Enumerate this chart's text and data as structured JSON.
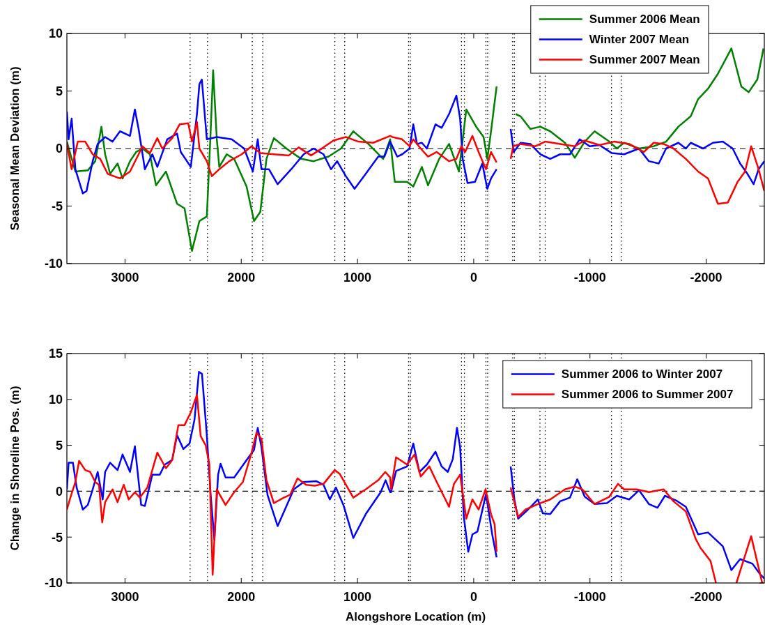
{
  "chart_data": [
    {
      "type": "line",
      "ylabel": "Seasonal Mean Deviation (m)",
      "xlim": [
        3500,
        -2500
      ],
      "xticks": [
        3000,
        2000,
        1000,
        0,
        -1000,
        -2000
      ],
      "ylim": [
        -10,
        10
      ],
      "yticks": [
        -10,
        -5,
        0,
        5,
        10
      ],
      "legend": "top right",
      "grid": false,
      "series": [
        {
          "name": "Summer 2006 Mean",
          "color": "#008000",
          "x": [
            3500,
            3427,
            3320,
            3256,
            3203,
            3171,
            3128,
            3064,
            3021,
            2957,
            2904,
            2851,
            2786,
            2733,
            2648,
            2552,
            2488,
            2424,
            2360,
            2296,
            2263,
            2242,
            2210,
            2189,
            2125,
            2061,
            1954,
            1890,
            1836,
            1783,
            1719,
            1612,
            1484,
            1377,
            1249,
            1142,
            1036,
            907,
            779,
            719,
            679,
            573,
            520,
            446,
            393,
            297,
            212,
            127,
            64,
            -21,
            -85,
            -117,
            -149,
            -197,
            -257,
            -361,
            -403,
            -488,
            -573,
            -658,
            -785,
            -870,
            -955,
            -1040,
            -1167,
            -1231,
            -1294,
            -1422,
            -1549,
            -1655,
            -1761,
            -1867,
            -1931,
            -2016,
            -2101,
            -2217,
            -2302,
            -2366,
            -2440,
            -2493
          ],
          "values": [
            0.6,
            -2,
            -1.9,
            -1.1,
            1.9,
            -0.5,
            -2.2,
            -1.3,
            -2.6,
            -1.1,
            -0.3,
            0,
            -0.5,
            -3.2,
            -2,
            -4.8,
            -5.2,
            -8.9,
            -6.3,
            -5.9,
            1.5,
            6.8,
            0.8,
            -1.6,
            -0.5,
            -0.9,
            -3.3,
            -6.3,
            -5.5,
            -0.9,
            0.9,
            0,
            -0.9,
            -1.1,
            -0.7,
            0,
            1.5,
            0.4,
            -0.9,
            0.8,
            -2.9,
            -2.9,
            -3.3,
            -1.6,
            -3.2,
            -0.9,
            0.4,
            -2,
            3.4,
            1.9,
            1,
            -0.9,
            1.5,
            5.4,
            null,
            3,
            2.8,
            1.7,
            1.9,
            1.5,
            0.5,
            -0.8,
            0.6,
            1.5,
            0.6,
            0,
            0.5,
            0,
            0.2,
            0.6,
            1.9,
            2.8,
            4.3,
            5.2,
            6.5,
            8.7,
            5.4,
            4.9,
            6,
            8.7
          ]
        },
        {
          "name": "Winter 2007 Mean",
          "color": "#0000ff",
          "x": [
            3500,
            3485,
            3459,
            3427,
            3363,
            3331,
            3278,
            3235,
            3171,
            3107,
            3043,
            2957,
            2915,
            2883,
            2829,
            2765,
            2722,
            2637,
            2552,
            2520,
            2434,
            2381,
            2360,
            2339,
            2296,
            2210,
            2082,
            1975,
            1900,
            1858,
            1826,
            1762,
            1687,
            1570,
            1463,
            1377,
            1292,
            1228,
            1175,
            1100,
            1025,
            929,
            821,
            768,
            719,
            658,
            615,
            552,
            520,
            488,
            446,
            403,
            329,
            276,
            212,
            149,
            117,
            95,
            53,
            -11,
            -74,
            -117,
            -149,
            -197,
            -257,
            -318,
            -344,
            -403,
            -488,
            -573,
            -658,
            -743,
            -828,
            -912,
            -997,
            -1082,
            -1188,
            -1294,
            -1422,
            -1507,
            -1592,
            -1655,
            -1761,
            -1825,
            -1867,
            -1973,
            -2058,
            -2143,
            -2228,
            -2292,
            -2355,
            -2408,
            -2451,
            -2500
          ],
          "values": [
            3.2,
            0.8,
            2.6,
            -1.8,
            -3.9,
            -3.7,
            -1.1,
            0.4,
            1,
            0.6,
            1.5,
            1.1,
            3.4,
            1.7,
            -1.8,
            -0.5,
            -1.6,
            0.8,
            1.3,
            -0.3,
            -1.6,
            3,
            5.6,
            6,
            0.8,
            1,
            0.8,
            0,
            -2,
            0.8,
            -1.8,
            -1.8,
            -3.1,
            -1.8,
            -0.5,
            0,
            -0.5,
            -1.8,
            -1.1,
            -2.4,
            -3.5,
            -2.2,
            -0.7,
            -0.7,
            0.6,
            -0.7,
            -0.5,
            0,
            2.1,
            0.4,
            0.5,
            0,
            2.1,
            1.8,
            3,
            4.6,
            2.6,
            -0.9,
            -3,
            -2.9,
            -1.3,
            -3.5,
            -2.6,
            -1.8,
            null,
            1.7,
            -0.3,
            0.5,
            0.4,
            -0.5,
            -0.9,
            -0.5,
            -0.5,
            0.8,
            0.2,
            0.3,
            -0.4,
            -0.5,
            0,
            -1.1,
            -1.3,
            0,
            0.5,
            0,
            0.5,
            0,
            0.5,
            0.6,
            0,
            -1.3,
            -2.2,
            -3.1,
            -1.8,
            -1.1
          ]
        },
        {
          "name": "Summer 2007 Mean",
          "color": "#ff0000",
          "x": [
            3500,
            3459,
            3406,
            3342,
            3278,
            3213,
            3149,
            3043,
            2957,
            2883,
            2851,
            2786,
            2722,
            2680,
            2594,
            2530,
            2456,
            2424,
            2381,
            2360,
            2296,
            2253,
            2189,
            2103,
            1996,
            1911,
            1836,
            1719,
            1591,
            1506,
            1399,
            1292,
            1207,
            1100,
            993,
            865,
            719,
            700,
            615,
            552,
            520,
            456,
            393,
            318,
            212,
            149,
            106,
            74,
            11,
            -42,
            -106,
            -149,
            -197,
            -257,
            -318,
            -340,
            -403,
            -530,
            -615,
            -743,
            -870,
            -955,
            -1082,
            -1209,
            -1337,
            -1464,
            -1549,
            -1634,
            -1719,
            -1825,
            -1931,
            -2016,
            -2101,
            -2186,
            -2270,
            -2334,
            -2387,
            -2451,
            -2500
          ],
          "values": [
            0.4,
            -1.8,
            0.6,
            0.6,
            -0.5,
            -0.9,
            -2.2,
            -2.6,
            -2,
            -0.5,
            0.2,
            -0.4,
            0.9,
            0,
            0.9,
            2.1,
            2.2,
            0.6,
            2.3,
            0,
            -1.1,
            -2.4,
            -1.8,
            -1.1,
            -0.5,
            0.2,
            -0.4,
            -0.5,
            -0.6,
            0.1,
            -0.6,
            0.1,
            0.7,
            1,
            0.6,
            0.5,
            1.1,
            1,
            0.8,
            0.2,
            0.8,
            0,
            -0.7,
            -0.3,
            -1.1,
            -0.9,
            0.2,
            -0.3,
            1.1,
            -0.3,
            -1.8,
            -0.3,
            -1.2,
            null,
            -0.9,
            0.2,
            0.4,
            0.2,
            0.6,
            0.4,
            0.2,
            0.7,
            0.3,
            0.6,
            0.4,
            -0.3,
            0.5,
            0.4,
            0,
            -0.9,
            -2,
            -2.6,
            -4.8,
            -4.7,
            -2.9,
            -2,
            0.2,
            -1.8,
            -3.7
          ]
        }
      ],
      "ref_lines": [
        {
          "axis": "y",
          "value": 0,
          "color": "#000000",
          "line_style": "dashed"
        },
        {
          "axis": "x",
          "value": 2440,
          "color": "#000000",
          "line_style": "dotted"
        },
        {
          "axis": "x",
          "value": 2290,
          "color": "#000000",
          "line_style": "dotted"
        },
        {
          "axis": "x",
          "value": 1905,
          "color": "#000000",
          "line_style": "dotted"
        },
        {
          "axis": "x",
          "value": 1815,
          "color": "#000000",
          "line_style": "dotted"
        },
        {
          "axis": "x",
          "value": 1195,
          "color": "#000000",
          "line_style": "dotted"
        },
        {
          "axis": "x",
          "value": 1110,
          "color": "#000000",
          "line_style": "dotted"
        },
        {
          "axis": "x",
          "value": 560,
          "color": "#000000",
          "line_style": "dotted"
        },
        {
          "axis": "x",
          "value": 545,
          "color": "#000000",
          "line_style": "dotted"
        },
        {
          "axis": "x",
          "value": 105,
          "color": "#000000",
          "line_style": "dotted"
        },
        {
          "axis": "x",
          "value": 80,
          "color": "#000000",
          "line_style": "dotted"
        },
        {
          "axis": "x",
          "value": -105,
          "color": "#000000",
          "line_style": "dotted"
        },
        {
          "axis": "x",
          "value": -120,
          "color": "#000000",
          "line_style": "dotted"
        },
        {
          "axis": "x",
          "value": -335,
          "color": "#000000",
          "line_style": "dotted"
        },
        {
          "axis": "x",
          "value": -350,
          "color": "#000000",
          "line_style": "dotted"
        },
        {
          "axis": "x",
          "value": -570,
          "color": "#000000",
          "line_style": "dotted"
        },
        {
          "axis": "x",
          "value": -615,
          "color": "#000000",
          "line_style": "dotted"
        },
        {
          "axis": "x",
          "value": -1185,
          "color": "#000000",
          "line_style": "dotted"
        },
        {
          "axis": "x",
          "value": -1270,
          "color": "#000000",
          "line_style": "dotted"
        }
      ]
    },
    {
      "type": "line",
      "ylabel": "Change in Shoreline Pos. (m)",
      "xlabel": "Alongshore Location (m)",
      "xlim": [
        3500,
        -2500
      ],
      "xticks": [
        3000,
        2000,
        1000,
        0,
        -1000,
        -2000
      ],
      "ylim": [
        -10,
        15
      ],
      "yticks": [
        -10,
        -5,
        0,
        5,
        10,
        15
      ],
      "legend": "top right",
      "grid": false,
      "series": [
        {
          "name": "Summer 2006 to Winter 2007",
          "color": "#0000ff",
          "x": [
            3500,
            3485,
            3448,
            3416,
            3363,
            3320,
            3278,
            3235,
            3192,
            3171,
            3128,
            3064,
            3021,
            2957,
            2915,
            2861,
            2829,
            2765,
            2701,
            2658,
            2594,
            2552,
            2498,
            2445,
            2402,
            2364,
            2338,
            2296,
            2263,
            2231,
            2199,
            2178,
            2135,
            2061,
            1954,
            1890,
            1858,
            1826,
            1774,
            1687,
            1548,
            1463,
            1356,
            1292,
            1238,
            1185,
            1121,
            1036,
            929,
            800,
            758,
            719,
            711,
            668,
            573,
            520,
            467,
            403,
            329,
            276,
            223,
            180,
            144,
            117,
            85,
            47,
            11,
            -32,
            -106,
            -159,
            -197,
            -257,
            -318,
            -350,
            -382,
            -467,
            -552,
            -594,
            -658,
            -743,
            -828,
            -891,
            -955,
            -1040,
            -1146,
            -1231,
            -1337,
            -1422,
            -1507,
            -1581,
            -1645,
            -1740,
            -1825,
            -1931,
            -2016,
            -2143,
            -2217,
            -2292,
            -2398,
            -2461,
            -2500
          ],
          "values": [
            0.2,
            3.1,
            3.1,
            0.4,
            -2,
            -1.5,
            0.2,
            2.1,
            -0.9,
            2.1,
            3.1,
            2.3,
            4,
            2.1,
            4.9,
            -1.5,
            -1.6,
            1.8,
            1.8,
            2.9,
            3.4,
            6.1,
            4.6,
            5.2,
            7.8,
            13,
            12.8,
            6.1,
            -0.4,
            -5.3,
            1.8,
            3,
            1.5,
            1.5,
            3.4,
            4.5,
            6.9,
            4.8,
            -0.4,
            -3.8,
            0.2,
            1,
            1.1,
            0.7,
            -0.9,
            0.4,
            -1.5,
            -5.1,
            -2.5,
            -0.1,
            1.2,
            -0.1,
            -0.1,
            2.2,
            2.7,
            5.2,
            2.1,
            2.9,
            4.3,
            2.7,
            2.1,
            3.5,
            6.9,
            4.8,
            -2.8,
            -6.6,
            -4.7,
            -4.4,
            -0.3,
            -4.7,
            -7.2,
            null,
            2.7,
            -0.9,
            -3,
            -2,
            -0.9,
            -2.4,
            -2.5,
            -1.1,
            -0.7,
            1.3,
            -0.6,
            -1.4,
            -1.3,
            -0.5,
            -0.9,
            0.1,
            -1.4,
            -1.8,
            -0.5,
            -1,
            -1.7,
            -4.7,
            -4.5,
            -6,
            -8.6,
            -7.4,
            -7.9,
            -9,
            -9.5
          ]
        },
        {
          "name": "Summer 2006 to Summer 2007",
          "color": "#ff0000",
          "x": [
            3500,
            3470,
            3427,
            3395,
            3342,
            3299,
            3256,
            3224,
            3196,
            3171,
            3107,
            3064,
            3011,
            2968,
            2915,
            2872,
            2808,
            2722,
            2648,
            2594,
            2541,
            2488,
            2434,
            2381,
            2349,
            2306,
            2274,
            2246,
            2210,
            2135,
            2061,
            1986,
            1911,
            1868,
            1826,
            1783,
            1719,
            1634,
            1580,
            1516,
            1442,
            1367,
            1292,
            1196,
            1153,
            1036,
            929,
            821,
            761,
            719,
            711,
            668,
            573,
            509,
            456,
            382,
            318,
            212,
            170,
            117,
            64,
            11,
            -42,
            -102,
            -149,
            -180,
            -197,
            -257,
            -318,
            -382,
            -446,
            -552,
            -658,
            -785,
            -870,
            -934,
            -1040,
            -1167,
            -1241,
            -1294,
            -1401,
            -1507,
            -1634,
            -1719,
            -1825,
            -1910,
            -1952,
            -2037,
            -2084,
            -2170,
            -2260,
            -2387,
            -2482
          ],
          "values": [
            -2,
            -0.7,
            1,
            3.3,
            2.3,
            2.1,
            1,
            0.7,
            -3.4,
            -1.2,
            0.2,
            -1.2,
            0.7,
            -0.9,
            -0.1,
            -0.7,
            0.4,
            4.2,
            2.5,
            3.4,
            7.2,
            7.2,
            8.6,
            10.5,
            6,
            5,
            2.9,
            -9.1,
            0.2,
            -1.5,
            -0.1,
            1,
            4.2,
            6.4,
            5.7,
            1.2,
            -1.3,
            -0.7,
            -0.4,
            1.4,
            0.7,
            0.6,
            0.8,
            2.3,
            1.9,
            -0.7,
            0.2,
            1.2,
            2.1,
            1.5,
            0.2,
            3.7,
            2.9,
            4,
            1.6,
            2.7,
            1,
            -1.7,
            0.8,
            1.8,
            -3,
            -0.9,
            -2,
            0.2,
            -2.5,
            -3.6,
            -6.6,
            null,
            0.4,
            -2.8,
            -2,
            -1.4,
            -0.9,
            0.2,
            0.5,
            0.2,
            -1.4,
            -0.6,
            0.8,
            0.2,
            0.2,
            -0.1,
            0.2,
            -1.1,
            -2.2,
            -5.2,
            -6.2,
            -7.6,
            -10,
            null,
            -10,
            -4.9,
            -10
          ]
        }
      ],
      "ref_lines": [
        {
          "axis": "y",
          "value": 0,
          "color": "#000000",
          "line_style": "dashed"
        },
        {
          "axis": "x",
          "value": 2440,
          "color": "#000000",
          "line_style": "dotted"
        },
        {
          "axis": "x",
          "value": 2290,
          "color": "#000000",
          "line_style": "dotted"
        },
        {
          "axis": "x",
          "value": 1905,
          "color": "#000000",
          "line_style": "dotted"
        },
        {
          "axis": "x",
          "value": 1815,
          "color": "#000000",
          "line_style": "dotted"
        },
        {
          "axis": "x",
          "value": 1195,
          "color": "#000000",
          "line_style": "dotted"
        },
        {
          "axis": "x",
          "value": 1110,
          "color": "#000000",
          "line_style": "dotted"
        },
        {
          "axis": "x",
          "value": 560,
          "color": "#000000",
          "line_style": "dotted"
        },
        {
          "axis": "x",
          "value": 545,
          "color": "#000000",
          "line_style": "dotted"
        },
        {
          "axis": "x",
          "value": 105,
          "color": "#000000",
          "line_style": "dotted"
        },
        {
          "axis": "x",
          "value": 80,
          "color": "#000000",
          "line_style": "dotted"
        },
        {
          "axis": "x",
          "value": -105,
          "color": "#000000",
          "line_style": "dotted"
        },
        {
          "axis": "x",
          "value": -120,
          "color": "#000000",
          "line_style": "dotted"
        },
        {
          "axis": "x",
          "value": -335,
          "color": "#000000",
          "line_style": "dotted"
        },
        {
          "axis": "x",
          "value": -350,
          "color": "#000000",
          "line_style": "dotted"
        },
        {
          "axis": "x",
          "value": -570,
          "color": "#000000",
          "line_style": "dotted"
        },
        {
          "axis": "x",
          "value": -615,
          "color": "#000000",
          "line_style": "dotted"
        },
        {
          "axis": "x",
          "value": -1185,
          "color": "#000000",
          "line_style": "dotted"
        },
        {
          "axis": "x",
          "value": -1270,
          "color": "#000000",
          "line_style": "dotted"
        }
      ]
    }
  ]
}
